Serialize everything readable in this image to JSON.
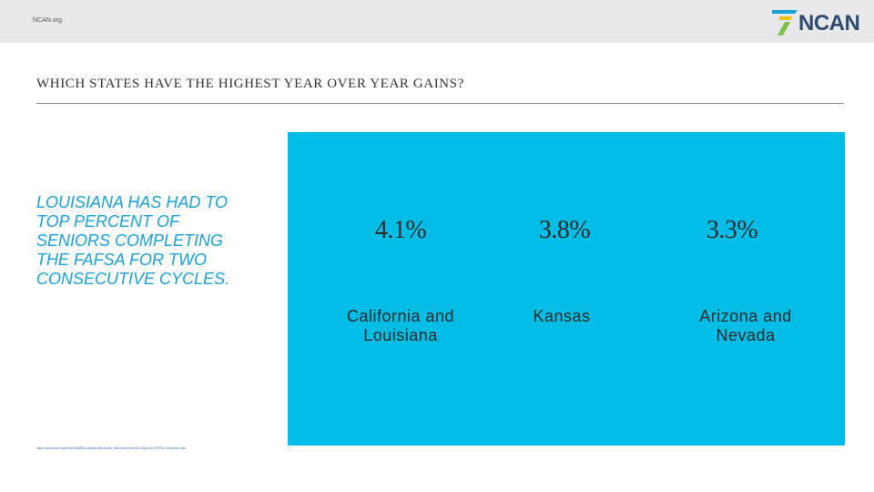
{
  "header": {
    "site_label": "NCAN.org",
    "logo_text": "NCAN",
    "logo_colors": {
      "text": "#2e4a6e",
      "stripe_blue": "#1aa3d9",
      "stripe_yellow": "#f3c21b",
      "stripe_green": "#7cc242"
    }
  },
  "slide": {
    "title": "WHICH STATES HAVE THE HIGHEST YEAR OVER YEAR GAINS?",
    "callout": "LOUISIANA HAS HAD TO TOP PERCENT OF SENIORS COMPLETING THE FAFSA FOR TWO CONSECUTIVE CYCLES.",
    "source_link": "https://www.ncan.org/news/456689/Louisiana-Illinois-and-Tennessee-Lead-the-Nation-in-FAFSA-Completion.htm",
    "panel_color": "#00bde6",
    "callout_color": "#1e9fd6"
  },
  "stats": [
    {
      "value": "4.1%",
      "label": "California and Louisiana"
    },
    {
      "value": "3.8%",
      "label": "Kansas"
    },
    {
      "value": "3.3%",
      "label": "Arizona and Nevada"
    }
  ]
}
